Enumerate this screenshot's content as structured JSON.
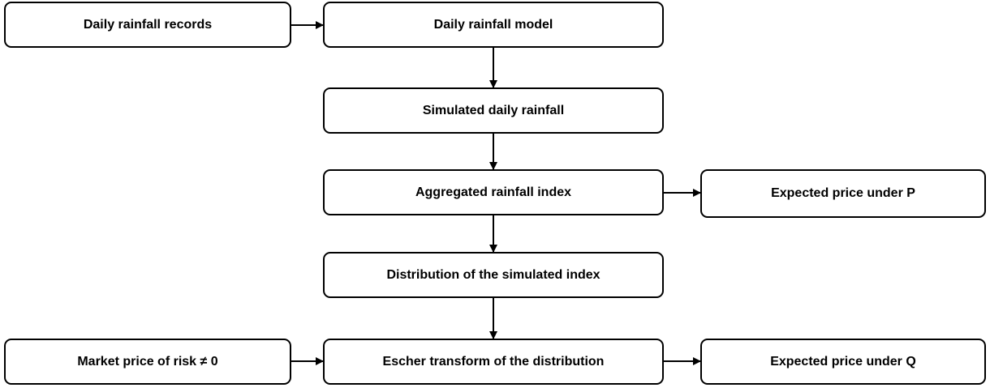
{
  "nodes": [
    {
      "label": "Daily rainfall records"
    },
    {
      "label": "Daily rainfall model"
    },
    {
      "label": "Simulated daily rainfall"
    },
    {
      "label": "Aggregated rainfall index"
    },
    {
      "label": "Expected price under P"
    },
    {
      "label": "Distribution of the simulated index"
    },
    {
      "label": "Market price of risk ≠ 0"
    },
    {
      "label": "Escher transform of the distribution"
    },
    {
      "label": "Expected price under Q"
    }
  ]
}
